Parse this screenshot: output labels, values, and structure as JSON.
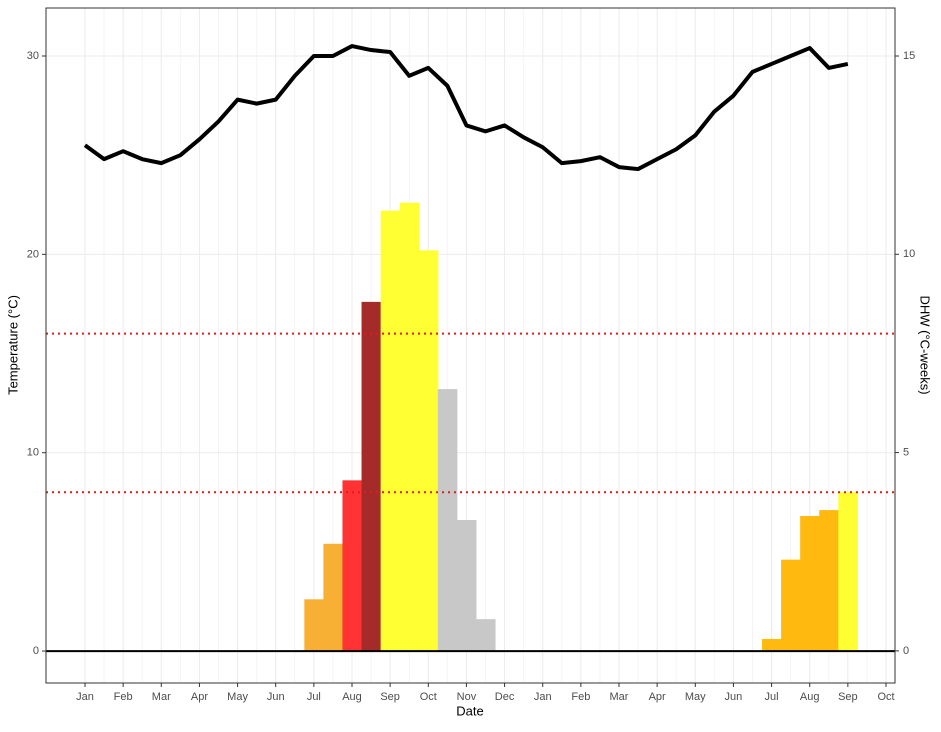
{
  "chart_data": {
    "type": "line-bar",
    "x_label": "Date",
    "y_label": "Temperature (°C)",
    "y2_label": "DHW (°C-weeks)",
    "categories": [
      "Jan",
      null,
      "Feb",
      null,
      "Mar",
      null,
      "Apr",
      null,
      "May",
      null,
      "Jun",
      null,
      "Jul",
      null,
      "Aug",
      null,
      "Sep",
      null,
      "Oct",
      null,
      "Nov",
      null,
      "Dec",
      null,
      "Jan",
      null,
      "Feb",
      null,
      "Mar",
      null,
      "Apr",
      null,
      "May",
      null,
      "Jun",
      null,
      "Jul",
      null,
      "Aug",
      null,
      "Sep",
      null,
      "Oct"
    ],
    "series": [
      {
        "name": "Temperature",
        "color": "#000000",
        "type": "line",
        "values": [
          25.5,
          24.8,
          25.2,
          24.8,
          24.6,
          25.0,
          25.8,
          26.7,
          27.8,
          27.6,
          27.8,
          29.0,
          30.0,
          30.0,
          30.5,
          30.3,
          30.2,
          29.0,
          29.4,
          28.5,
          26.5,
          26.2,
          26.5,
          25.9,
          25.4,
          24.6,
          24.7,
          24.9,
          24.4,
          24.3,
          24.8,
          25.3,
          26.0,
          27.2,
          28.0,
          29.2,
          29.6,
          30.0,
          30.4,
          29.4,
          29.6,
          null,
          null
        ]
      },
      {
        "name": "DHW",
        "type": "bar",
        "axis": "y2",
        "values": [
          0,
          0,
          0,
          0,
          0,
          0,
          0,
          0,
          0,
          0,
          0,
          0,
          1.3,
          2.7,
          4.3,
          8.8,
          11.1,
          11.3,
          10.1,
          6.6,
          3.3,
          0.8,
          0,
          0,
          0,
          0,
          0,
          0,
          0,
          0,
          0,
          0,
          0,
          0,
          0,
          0,
          0.3,
          2.3,
          3.4,
          3.55,
          4.0,
          0,
          0
        ],
        "colors": [
          null,
          null,
          null,
          null,
          null,
          null,
          null,
          null,
          null,
          null,
          null,
          null,
          "#f7b034",
          "#f7b034",
          "#ff3333",
          "#a52a2a",
          "#ffff33",
          "#ffff33",
          "#ffff33",
          "#c8c8c8",
          "#c8c8c8",
          "#c8c8c8",
          null,
          null,
          null,
          null,
          null,
          null,
          null,
          null,
          null,
          null,
          null,
          null,
          null,
          null,
          "#ffb90f",
          "#ffb90f",
          "#ffb90f",
          "#ffb90f",
          "#ffff33",
          null,
          null
        ]
      }
    ],
    "thresholds": [
      4,
      8
    ],
    "threshold_color": "#e31a1c",
    "ylim": [
      -1.61,
      32.42
    ],
    "yticks": [
      0,
      10,
      20,
      30
    ],
    "y2lim": [
      -0.81,
      16.21
    ],
    "y2ticks": [
      0,
      5,
      10,
      15
    ],
    "grid": true
  }
}
